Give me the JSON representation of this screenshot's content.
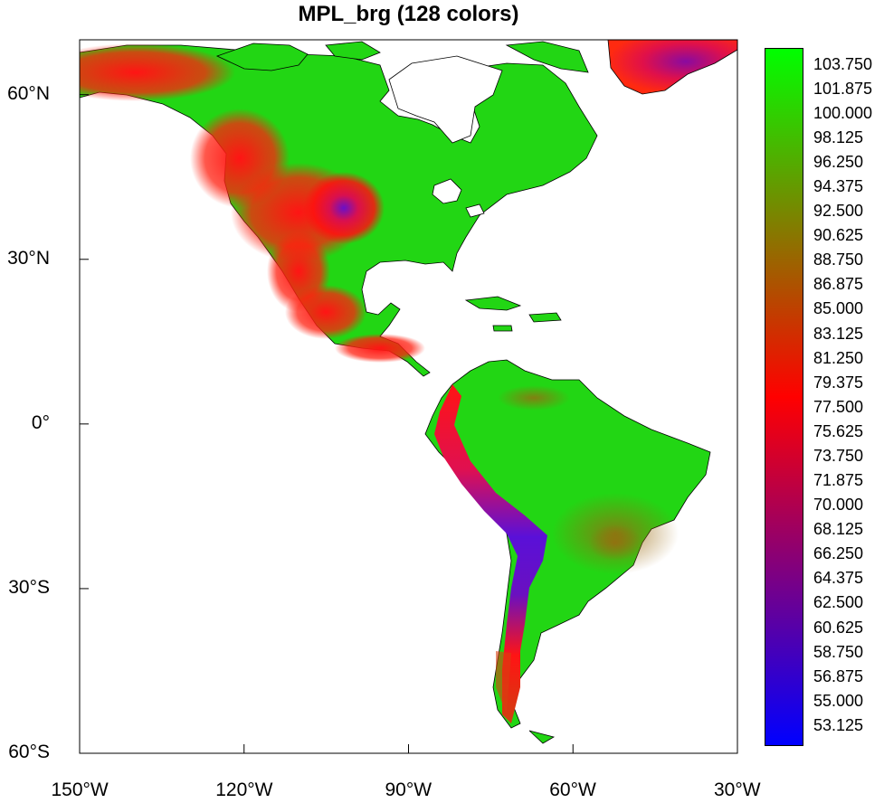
{
  "title": "MPL_brg (128 colors)",
  "map": {
    "projection": "cylindrical equidistant",
    "lon_range": [
      -150,
      -30
    ],
    "lat_range": [
      -60,
      70
    ],
    "ocean_color": "#ffffff",
    "colors": {
      "low": "#0000ff",
      "mid": "#ff0000",
      "high": "#00ff00"
    },
    "lat_labels": [
      {
        "lat": 60,
        "text": "60°N"
      },
      {
        "lat": 30,
        "text": "30°N"
      },
      {
        "lat": 0,
        "text": "0°"
      },
      {
        "lat": -30,
        "text": "30°S"
      },
      {
        "lat": -60,
        "text": "60°S"
      }
    ],
    "lon_labels": [
      {
        "lon": -150,
        "text": "150°W"
      },
      {
        "lon": -120,
        "text": "120°W"
      },
      {
        "lon": -90,
        "text": "90°W"
      },
      {
        "lon": -60,
        "text": "60°W"
      },
      {
        "lon": -30,
        "text": "30°W"
      }
    ]
  },
  "colorbar": {
    "colors": [
      "#0000ff",
      "#ff0000",
      "#00ff00"
    ],
    "labels": [
      "103.750",
      "101.875",
      "100.000",
      "98.125",
      "96.250",
      "94.375",
      "92.500",
      "90.625",
      "88.750",
      "86.875",
      "85.000",
      "83.125",
      "81.250",
      "79.375",
      "77.500",
      "75.625",
      "73.750",
      "71.875",
      "70.000",
      "68.125",
      "66.250",
      "64.375",
      "62.500",
      "60.625",
      "58.750",
      "56.875",
      "55.000",
      "53.125"
    ]
  }
}
